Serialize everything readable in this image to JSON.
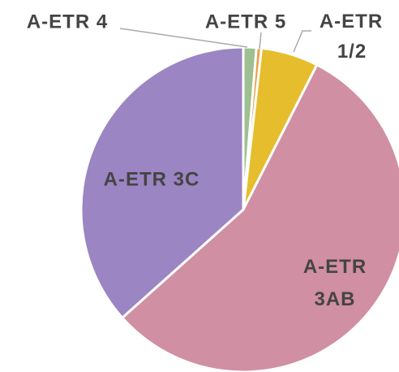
{
  "chart_data": {
    "type": "pie",
    "categories": [
      "A-ETR 4",
      "A-ETR 5",
      "A-ETR 1/2",
      "A-ETR 3AB",
      "A-ETR 3C"
    ],
    "values": [
      1.3,
      0.5,
      5.7,
      55.9,
      36.6
    ],
    "colors": [
      "#9dbf91",
      "#e8a24a",
      "#e6bd2d",
      "#d08fa3",
      "#9b85c2"
    ]
  }
}
